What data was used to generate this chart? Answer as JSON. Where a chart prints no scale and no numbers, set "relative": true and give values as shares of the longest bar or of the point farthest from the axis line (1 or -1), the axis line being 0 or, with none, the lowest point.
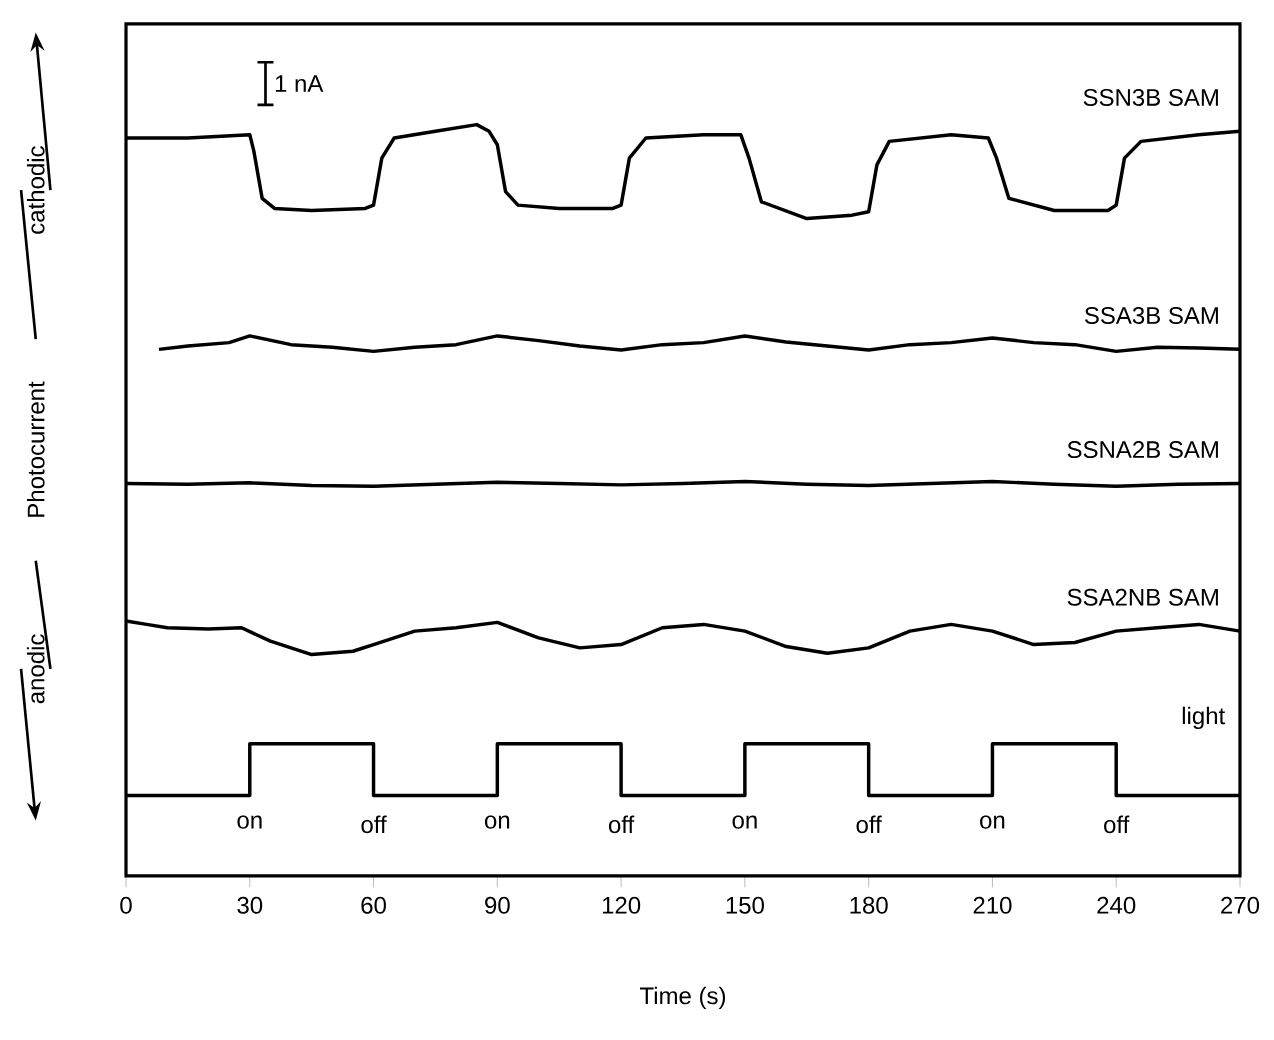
{
  "chart_data": {
    "type": "line",
    "relative": true,
    "xlabel": "Time (s)",
    "ylabel": "Photocurrent",
    "xlim": [
      0,
      270
    ],
    "xticks": [
      0,
      30,
      60,
      90,
      120,
      150,
      180,
      210,
      240,
      270
    ],
    "tick_labels": "x",
    "grid": false,
    "marker": "none",
    "line_style": "solid",
    "series": [
      {
        "name": "SSN3B SAM",
        "color": "#000000",
        "x": [
          0,
          15,
          30,
          31,
          33,
          36,
          45,
          58,
          60,
          62,
          65,
          75,
          85,
          88,
          90,
          92,
          95,
          105,
          118,
          120,
          122,
          126,
          140,
          149,
          151,
          154,
          165,
          176,
          180,
          182,
          185,
          200,
          209,
          211,
          214,
          225,
          238,
          240,
          242,
          246,
          260,
          270
        ],
        "values": [
          0.98,
          0.98,
          0.985,
          0.96,
          0.89,
          0.875,
          0.872,
          0.875,
          0.88,
          0.95,
          0.98,
          0.99,
          1.0,
          0.99,
          0.97,
          0.9,
          0.88,
          0.875,
          0.875,
          0.88,
          0.95,
          0.98,
          0.985,
          0.985,
          0.95,
          0.885,
          0.86,
          0.865,
          0.87,
          0.94,
          0.975,
          0.985,
          0.98,
          0.95,
          0.89,
          0.872,
          0.872,
          0.88,
          0.95,
          0.975,
          0.985,
          0.99
        ]
      },
      {
        "name": "SSA3B SAM",
        "color": "#000000",
        "x": [
          8,
          15,
          25,
          30,
          40,
          50,
          60,
          70,
          80,
          90,
          100,
          110,
          120,
          130,
          140,
          150,
          160,
          170,
          180,
          190,
          200,
          210,
          220,
          230,
          240,
          250,
          260,
          270
        ],
        "values": [
          0.665,
          0.67,
          0.675,
          0.685,
          0.672,
          0.668,
          0.662,
          0.668,
          0.672,
          0.685,
          0.678,
          0.67,
          0.664,
          0.672,
          0.675,
          0.685,
          0.676,
          0.67,
          0.664,
          0.672,
          0.675,
          0.682,
          0.675,
          0.672,
          0.662,
          0.668,
          0.667,
          0.665
        ]
      },
      {
        "name": "SSNA2B SAM",
        "color": "#000000",
        "x": [
          0,
          15,
          30,
          45,
          60,
          75,
          90,
          105,
          120,
          135,
          150,
          165,
          180,
          195,
          210,
          225,
          240,
          255,
          270
        ],
        "values": [
          0.465,
          0.464,
          0.466,
          0.462,
          0.461,
          0.464,
          0.467,
          0.465,
          0.463,
          0.465,
          0.468,
          0.464,
          0.462,
          0.465,
          0.468,
          0.464,
          0.461,
          0.464,
          0.465
        ]
      },
      {
        "name": "SSA2NB SAM",
        "color": "#000000",
        "x": [
          0,
          5,
          10,
          20,
          28,
          35,
          45,
          55,
          60,
          70,
          80,
          90,
          100,
          110,
          120,
          130,
          140,
          150,
          160,
          170,
          180,
          190,
          200,
          210,
          220,
          230,
          240,
          250,
          260,
          270
        ],
        "values": [
          0.26,
          0.255,
          0.25,
          0.248,
          0.25,
          0.23,
          0.21,
          0.215,
          0.225,
          0.245,
          0.25,
          0.258,
          0.235,
          0.22,
          0.225,
          0.25,
          0.255,
          0.245,
          0.222,
          0.212,
          0.22,
          0.245,
          0.255,
          0.245,
          0.225,
          0.228,
          0.245,
          0.25,
          0.255,
          0.245
        ]
      },
      {
        "name": "light",
        "type": "step",
        "color": "#000000",
        "x": [
          0,
          30,
          60,
          90,
          120,
          150,
          180,
          210,
          240,
          270
        ],
        "values": [
          0,
          0.077,
          0,
          0.077,
          0,
          0.077,
          0,
          0.077,
          0,
          0
        ]
      }
    ],
    "annotations": [
      "cathodic",
      "anodic",
      "1 nA",
      "on",
      "off",
      "on",
      "off",
      "on",
      "off",
      "on",
      "off"
    ]
  }
}
